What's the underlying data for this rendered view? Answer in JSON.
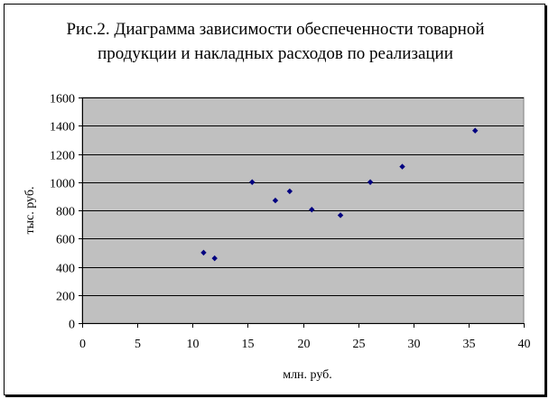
{
  "chart_data": {
    "type": "scatter",
    "title_lines": [
      "Рис.2. Диаграмма зависимости обеспеченности товарной",
      "продукции и накладных расходов по реализации"
    ],
    "xlabel": "млн. руб.",
    "ylabel": "тыс. руб.",
    "xlim": [
      0,
      40
    ],
    "ylim": [
      0,
      1600
    ],
    "x_ticks": [
      0,
      5,
      10,
      15,
      20,
      25,
      30,
      35,
      40
    ],
    "y_ticks": [
      0,
      200,
      400,
      600,
      800,
      1000,
      1200,
      1400,
      1600
    ],
    "grid": "horizontal",
    "legend": "none",
    "plot_background": "#c0c0c0",
    "marker_color": "#000080",
    "points": [
      {
        "x": 11.0,
        "y": 500
      },
      {
        "x": 12.0,
        "y": 460
      },
      {
        "x": 15.4,
        "y": 1000
      },
      {
        "x": 17.5,
        "y": 870
      },
      {
        "x": 18.8,
        "y": 935
      },
      {
        "x": 20.8,
        "y": 805
      },
      {
        "x": 23.4,
        "y": 765
      },
      {
        "x": 26.1,
        "y": 1000
      },
      {
        "x": 29.0,
        "y": 1110
      },
      {
        "x": 35.6,
        "y": 1365
      }
    ]
  }
}
